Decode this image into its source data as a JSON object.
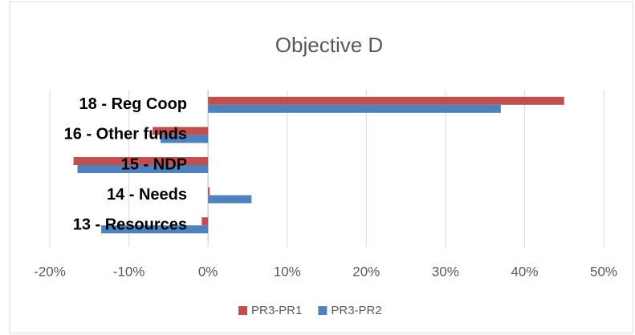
{
  "chart_data": {
    "type": "hbar",
    "title": "Objective D",
    "categories": [
      "18 - Reg Coop",
      "16 - Other funds",
      "15 - NDP",
      "14 - Needs",
      "13 - Resources"
    ],
    "series": [
      {
        "name": "PR3-PR1",
        "color": "#c0504d",
        "values": [
          45,
          -7,
          -17,
          0.2,
          -0.8
        ]
      },
      {
        "name": "PR3-PR2",
        "color": "#4f81bd",
        "values": [
          37,
          -6,
          -16.5,
          5.5,
          -13.5
        ]
      }
    ],
    "xlim": [
      -20,
      50
    ],
    "xticks": [
      {
        "value": -20,
        "label": "-20%"
      },
      {
        "value": -10,
        "label": "-10%"
      },
      {
        "value": 0,
        "label": "0%"
      },
      {
        "value": 10,
        "label": "10%"
      },
      {
        "value": 20,
        "label": "20%"
      },
      {
        "value": 30,
        "label": "30%"
      },
      {
        "value": 40,
        "label": "40%"
      },
      {
        "value": 50,
        "label": "50%"
      }
    ],
    "grid": true,
    "legend": "bottom"
  }
}
